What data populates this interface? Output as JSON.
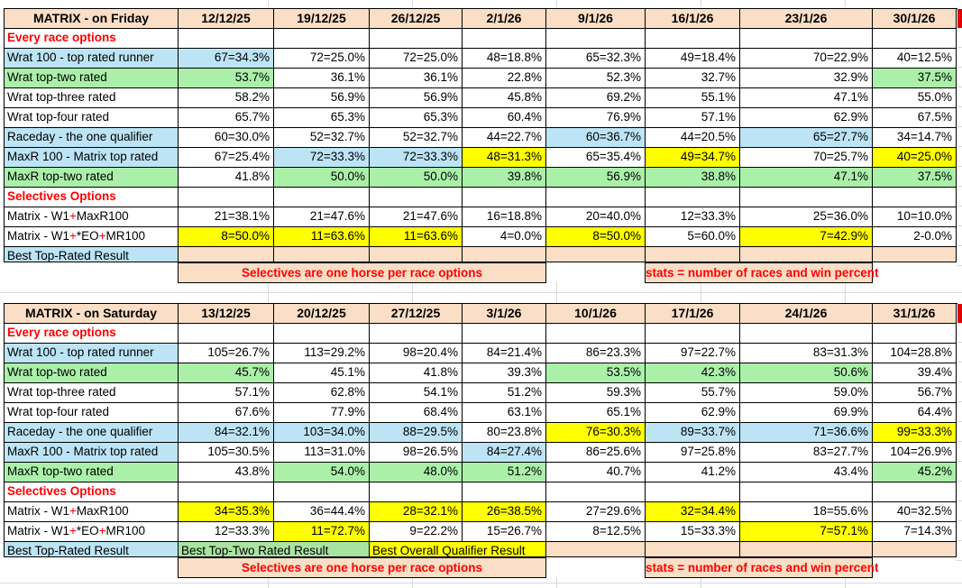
{
  "colors": {
    "salmon": "#fbdec6",
    "blue": "#bce4f5",
    "green": "#aaf0a9",
    "bestgreen": "#a9e3a0",
    "yellow": "#ffff00",
    "red_text": "#ff0000",
    "red_edge": "#e00000",
    "grid_black": "#000000",
    "faint_grid": "#d9d9d9"
  },
  "footnotes": {
    "selectives": "Selectives are one horse per race options",
    "stats": "stats = number of races and win percent"
  },
  "tables": [
    {
      "title": "MATRIX - on Friday",
      "dates": [
        "12/12/25",
        "19/12/25",
        "26/12/25",
        "2/1/26",
        "9/1/26",
        "16/1/26",
        "23/1/26",
        "30/1/26"
      ],
      "rows": [
        {
          "label": "Every race options",
          "type": "section"
        },
        {
          "label": "Wrat 100 - top rated runner",
          "lbg": "blue",
          "cells": [
            {
              "t": "67=34.3%",
              "bg": "blue"
            },
            {
              "t": "72=25.0%"
            },
            {
              "t": "72=25.0%"
            },
            {
              "t": "48=18.8%"
            },
            {
              "t": "65=32.3%"
            },
            {
              "t": "49=18.4%"
            },
            {
              "t": "70=22.9%"
            },
            {
              "t": "40=12.5%"
            }
          ]
        },
        {
          "label": "Wrat top-two rated",
          "lbg": "green",
          "cells": [
            {
              "t": "53.7%",
              "bg": "green"
            },
            {
              "t": "36.1%"
            },
            {
              "t": "36.1%"
            },
            {
              "t": "22.8%"
            },
            {
              "t": "52.3%"
            },
            {
              "t": "32.7%"
            },
            {
              "t": "32.9%"
            },
            {
              "t": "37.5%",
              "bg": "green"
            }
          ]
        },
        {
          "label": "Wrat top-three rated",
          "cells": [
            {
              "t": "58.2%"
            },
            {
              "t": "56.9%"
            },
            {
              "t": "56.9%"
            },
            {
              "t": "45.8%"
            },
            {
              "t": "69.2%"
            },
            {
              "t": "55.1%"
            },
            {
              "t": "47.1%"
            },
            {
              "t": "55.0%"
            }
          ]
        },
        {
          "label": "Wrat top-four rated",
          "cells": [
            {
              "t": "65.7%"
            },
            {
              "t": "65.3%"
            },
            {
              "t": "65.3%"
            },
            {
              "t": "60.4%"
            },
            {
              "t": "76.9%"
            },
            {
              "t": "57.1%"
            },
            {
              "t": "62.9%"
            },
            {
              "t": "67.5%"
            }
          ]
        },
        {
          "label": "Raceday - the one qualifier",
          "lbg": "blue",
          "cells": [
            {
              "t": "60=30.0%"
            },
            {
              "t": "52=32.7%"
            },
            {
              "t": "52=32.7%"
            },
            {
              "t": "44=22.7%"
            },
            {
              "t": "60=36.7%",
              "bg": "blue"
            },
            {
              "t": "44=20.5%"
            },
            {
              "t": "65=27.7%",
              "bg": "blue"
            },
            {
              "t": "34=14.7%"
            }
          ]
        },
        {
          "label": "MaxR 100 - Matrix top rated",
          "lbg": "blue",
          "cells": [
            {
              "t": "67=25.4%"
            },
            {
              "t": "72=33.3%",
              "bg": "blue"
            },
            {
              "t": "72=33.3%",
              "bg": "blue"
            },
            {
              "t": "48=31.3%",
              "bg": "yellow"
            },
            {
              "t": "65=35.4%"
            },
            {
              "t": "49=34.7%",
              "bg": "yellow"
            },
            {
              "t": "70=25.7%"
            },
            {
              "t": "40=25.0%",
              "bg": "yellow"
            }
          ]
        },
        {
          "label": "MaxR top-two rated",
          "lbg": "green",
          "cells": [
            {
              "t": "41.8%"
            },
            {
              "t": "50.0%",
              "bg": "green"
            },
            {
              "t": "50.0%",
              "bg": "green"
            },
            {
              "t": "39.8%",
              "bg": "green"
            },
            {
              "t": "56.9%",
              "bg": "green"
            },
            {
              "t": "38.8%",
              "bg": "green"
            },
            {
              "t": "47.1%",
              "bg": "green"
            },
            {
              "t": "37.5%",
              "bg": "green"
            }
          ]
        },
        {
          "label": "Selectives Options",
          "type": "section"
        },
        {
          "label": "Matrix - W1+MaxR100",
          "segs": [
            {
              "t": "Matrix - W1"
            },
            {
              "t": "+",
              "red": true
            },
            {
              "t": "MaxR100"
            }
          ],
          "cells": [
            {
              "t": "21=38.1%"
            },
            {
              "t": "21=47.6%"
            },
            {
              "t": "21=47.6%"
            },
            {
              "t": "16=18.8%"
            },
            {
              "t": "20=40.0%"
            },
            {
              "t": "12=33.3%"
            },
            {
              "t": "25=36.0%"
            },
            {
              "t": "10=10.0%"
            }
          ]
        },
        {
          "label": "Matrix - W1+*EO+MR100",
          "segs": [
            {
              "t": "Matrix - W1"
            },
            {
              "t": "+",
              "red": true
            },
            {
              "t": "*EO"
            },
            {
              "t": "+",
              "red": true
            },
            {
              "t": "MR100"
            }
          ],
          "cells": [
            {
              "t": "8=50.0%",
              "bg": "yellow"
            },
            {
              "t": "11=63.6%",
              "bg": "yellow"
            },
            {
              "t": "11=63.6%",
              "bg": "yellow"
            },
            {
              "t": "4=0.0%"
            },
            {
              "t": "8=50.0%",
              "bg": "yellow"
            },
            {
              "t": "5=60.0%"
            },
            {
              "t": "7=42.9%",
              "bg": "yellow"
            },
            {
              "t": "2-0.0%"
            }
          ]
        }
      ],
      "best_row": {
        "label": "Best Top-Rated Result",
        "lbg": "blue",
        "cells": [
          {
            "bg": "salmon"
          },
          {
            "bg": "salmon"
          },
          {
            "bg": "salmon"
          },
          {
            "bg": "salmon"
          },
          {
            "bg": "salmon"
          },
          {
            "bg": "salmon"
          },
          {
            "bg": "salmon"
          },
          {
            "bg": "salmon"
          }
        ]
      }
    },
    {
      "title": "MATRIX - on Saturday",
      "dates": [
        "13/12/25",
        "20/12/25",
        "27/12/25",
        "3/1/26",
        "10/1/26",
        "17/1/26",
        "24/1/26",
        "31/1/26"
      ],
      "rows": [
        {
          "label": "Every race options",
          "type": "section"
        },
        {
          "label": "Wrat 100 - top rated runner",
          "lbg": "blue",
          "cells": [
            {
              "t": "105=26.7%"
            },
            {
              "t": "113=29.2%"
            },
            {
              "t": "98=20.4%"
            },
            {
              "t": "84=21.4%"
            },
            {
              "t": "86=23.3%"
            },
            {
              "t": "97=22.7%"
            },
            {
              "t": "83=31.3%"
            },
            {
              "t": "104=28.8%"
            }
          ]
        },
        {
          "label": "Wrat top-two rated",
          "lbg": "green",
          "cells": [
            {
              "t": "45.7%",
              "bg": "green"
            },
            {
              "t": "45.1%"
            },
            {
              "t": "41.8%"
            },
            {
              "t": "39.3%"
            },
            {
              "t": "53.5%",
              "bg": "green"
            },
            {
              "t": "42.3%",
              "bg": "green"
            },
            {
              "t": "50.6%",
              "bg": "green"
            },
            {
              "t": "39.4%"
            }
          ]
        },
        {
          "label": "Wrat top-three rated",
          "cells": [
            {
              "t": "57.1%"
            },
            {
              "t": "62.8%"
            },
            {
              "t": "54.1%"
            },
            {
              "t": "51.2%"
            },
            {
              "t": "59.3%"
            },
            {
              "t": "55.7%"
            },
            {
              "t": "59.0%"
            },
            {
              "t": "56.7%"
            }
          ]
        },
        {
          "label": "Wrat top-four rated",
          "cells": [
            {
              "t": "67.6%"
            },
            {
              "t": "77.9%"
            },
            {
              "t": "68.4%"
            },
            {
              "t": "63.1%"
            },
            {
              "t": "65.1%"
            },
            {
              "t": "62.9%"
            },
            {
              "t": "69.9%"
            },
            {
              "t": "64.4%"
            }
          ]
        },
        {
          "label": "Raceday - the one qualifier",
          "lbg": "blue",
          "cells": [
            {
              "t": "84=32.1%",
              "bg": "blue"
            },
            {
              "t": "103=34.0%",
              "bg": "blue"
            },
            {
              "t": "88=29.5%",
              "bg": "blue"
            },
            {
              "t": "80=23.8%"
            },
            {
              "t": "76=30.3%",
              "bg": "yellow"
            },
            {
              "t": "89=33.7%",
              "bg": "blue"
            },
            {
              "t": "71=36.6%",
              "bg": "blue"
            },
            {
              "t": "99=33.3%",
              "bg": "yellow"
            }
          ]
        },
        {
          "label": "MaxR 100 - Matrix top rated",
          "lbg": "blue",
          "cells": [
            {
              "t": "105=30.5%"
            },
            {
              "t": "113=31.0%"
            },
            {
              "t": "98=26.5%"
            },
            {
              "t": "84=27.4%",
              "bg": "blue"
            },
            {
              "t": "86=25.6%"
            },
            {
              "t": "97=25.8%"
            },
            {
              "t": "83=27.7%"
            },
            {
              "t": "104=26.9%"
            }
          ]
        },
        {
          "label": "MaxR top-two rated",
          "lbg": "green",
          "cells": [
            {
              "t": "43.8%"
            },
            {
              "t": "54.0%",
              "bg": "green"
            },
            {
              "t": "48.0%",
              "bg": "green"
            },
            {
              "t": "51.2%",
              "bg": "green"
            },
            {
              "t": "40.7%"
            },
            {
              "t": "41.2%"
            },
            {
              "t": "43.4%"
            },
            {
              "t": "45.2%",
              "bg": "green"
            }
          ]
        },
        {
          "label": "Selectives Options",
          "type": "section"
        },
        {
          "label": "Matrix - W1+MaxR100",
          "segs": [
            {
              "t": "Matrix - W1"
            },
            {
              "t": "+",
              "red": true
            },
            {
              "t": "MaxR100"
            }
          ],
          "cells": [
            {
              "t": "34=35.3%",
              "bg": "yellow"
            },
            {
              "t": "36=44.4%"
            },
            {
              "t": "28=32.1%",
              "bg": "yellow"
            },
            {
              "t": "26=38.5%",
              "bg": "yellow"
            },
            {
              "t": "27=29.6%"
            },
            {
              "t": "32=34.4%",
              "bg": "yellow"
            },
            {
              "t": "18=55.6%"
            },
            {
              "t": "40=32.5%"
            }
          ]
        },
        {
          "label": "Matrix - W1+*EO+MR100",
          "segs": [
            {
              "t": "Matrix - W1"
            },
            {
              "t": "+",
              "red": true
            },
            {
              "t": "*EO"
            },
            {
              "t": "+",
              "red": true
            },
            {
              "t": "MR100"
            }
          ],
          "cells": [
            {
              "t": "12=33.3%"
            },
            {
              "t": "11=72.7%",
              "bg": "yellow"
            },
            {
              "t": "9=22.2%"
            },
            {
              "t": "15=26.7%"
            },
            {
              "t": "8=12.5%"
            },
            {
              "t": "15=33.3%"
            },
            {
              "t": "7=57.1%",
              "bg": "yellow"
            },
            {
              "t": "7=14.3%"
            }
          ]
        }
      ],
      "best_row": {
        "label": "Best Top-Rated Result",
        "lbg": "blue",
        "cells": [
          {
            "t": "Best Top-Two Rated Result",
            "bg": "bestgreen",
            "span": 2,
            "align": "left"
          },
          {
            "t": "Best Overall Qualifier Result",
            "bg": "yellow",
            "span": 2,
            "align": "left"
          },
          {
            "bg": "salmon"
          },
          {
            "bg": "salmon"
          },
          {
            "bg": "salmon"
          },
          {
            "bg": "salmon"
          }
        ]
      }
    }
  ]
}
